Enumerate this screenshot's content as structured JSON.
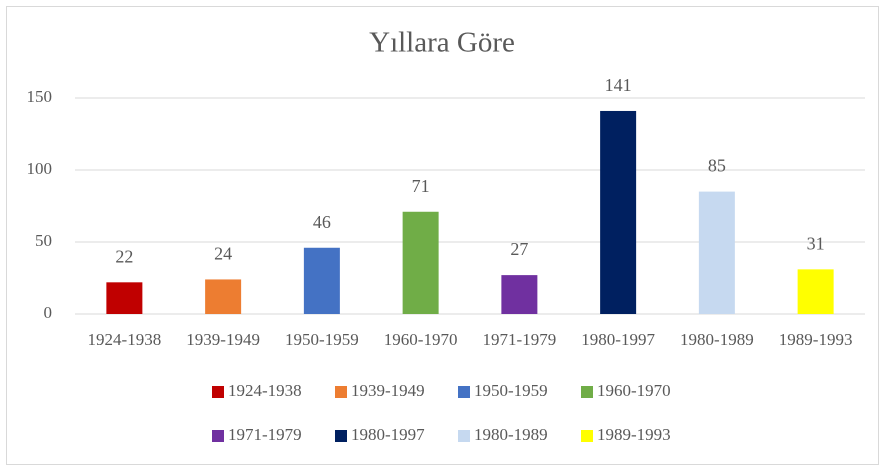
{
  "chart_data": {
    "type": "bar",
    "title": "Yıllara Göre",
    "categories": [
      "1924-1938",
      "1939-1949",
      "1950-1959",
      "1960-1970",
      "1971-1979",
      "1980-1997",
      "1980-1989",
      "1989-1993"
    ],
    "values": [
      22,
      24,
      46,
      71,
      27,
      141,
      85,
      31
    ],
    "colors": [
      "#c00000",
      "#ed7d31",
      "#4472c4",
      "#70ad47",
      "#7030a0",
      "#002060",
      "#c6d9f0",
      "#ffff00"
    ],
    "ylim": [
      0,
      150
    ],
    "yticks": [
      0,
      50,
      100,
      150
    ],
    "grid": true,
    "legend": "bottom"
  }
}
